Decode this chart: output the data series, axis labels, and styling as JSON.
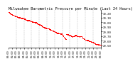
{
  "title": "Milwaukee Barometric Pressure per Minute (Last 24 Hours)",
  "y_start": 30.2,
  "y_end": 29.5,
  "num_points": 1440,
  "line_color": "#FF0000",
  "background_color": "#ffffff",
  "grid_color": "#aaaaaa",
  "title_fontsize": 3.8,
  "tick_fontsize": 2.8,
  "y_labels": [
    "30.20",
    "30.10",
    "30.00",
    "29.90",
    "29.80",
    "29.70",
    "29.60",
    "29.50"
  ],
  "ylim": [
    29.46,
    30.26
  ],
  "xlim": [
    0,
    1439
  ],
  "num_vlines": 11,
  "num_xticks": 25
}
